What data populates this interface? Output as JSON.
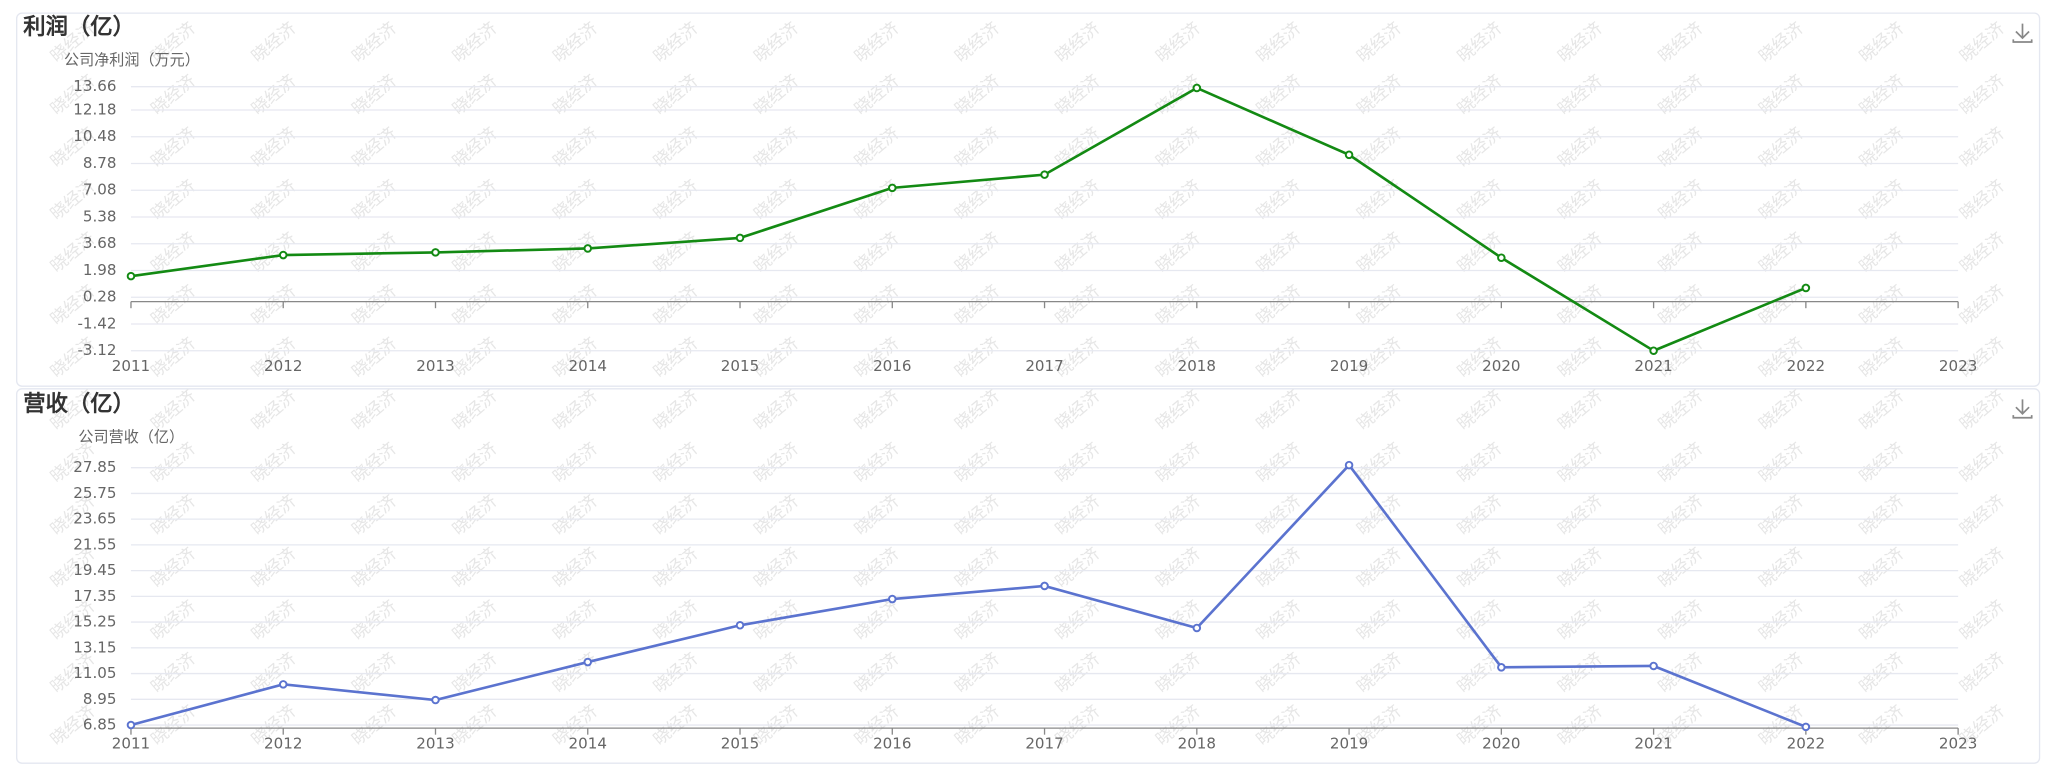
{
  "watermark": "晓经济",
  "chart_data": [
    {
      "type": "line",
      "title": "利润（亿）",
      "y_axis_label": "公司净利润（万元）",
      "categories": [
        "2011",
        "2012",
        "2013",
        "2014",
        "2015",
        "2016",
        "2017",
        "2018",
        "2019",
        "2020",
        "2021",
        "2022",
        "2023"
      ],
      "series": [
        {
          "color": "#138a13",
          "values": [
            1.62,
            2.96,
            3.13,
            3.38,
            4.05,
            7.23,
            8.07,
            13.58,
            9.33,
            2.79,
            -3.12,
            0.87,
            null
          ]
        }
      ],
      "ylim": [
        -3.12,
        13.66
      ],
      "yticks": [
        13.66,
        12.18,
        10.48,
        8.78,
        7.08,
        5.38,
        3.68,
        1.98,
        0.28,
        -1.42,
        -3.12
      ],
      "grid": true
    },
    {
      "type": "line",
      "title": "营收（亿）",
      "y_axis_label": "公司营收（亿）",
      "categories": [
        "2011",
        "2012",
        "2013",
        "2014",
        "2015",
        "2016",
        "2017",
        "2018",
        "2019",
        "2020",
        "2021",
        "2022",
        "2023"
      ],
      "series": [
        {
          "color": "#5b73cf",
          "values": [
            6.85,
            10.17,
            8.89,
            11.99,
            14.99,
            17.13,
            18.2,
            14.77,
            28.06,
            11.56,
            11.67,
            6.7,
            null
          ]
        }
      ],
      "ylim": [
        6.6,
        28.1
      ],
      "yticks": [
        27.85,
        25.75,
        23.65,
        21.55,
        19.45,
        17.35,
        15.25,
        13.15,
        11.05,
        8.95,
        6.85
      ],
      "grid": true
    }
  ]
}
